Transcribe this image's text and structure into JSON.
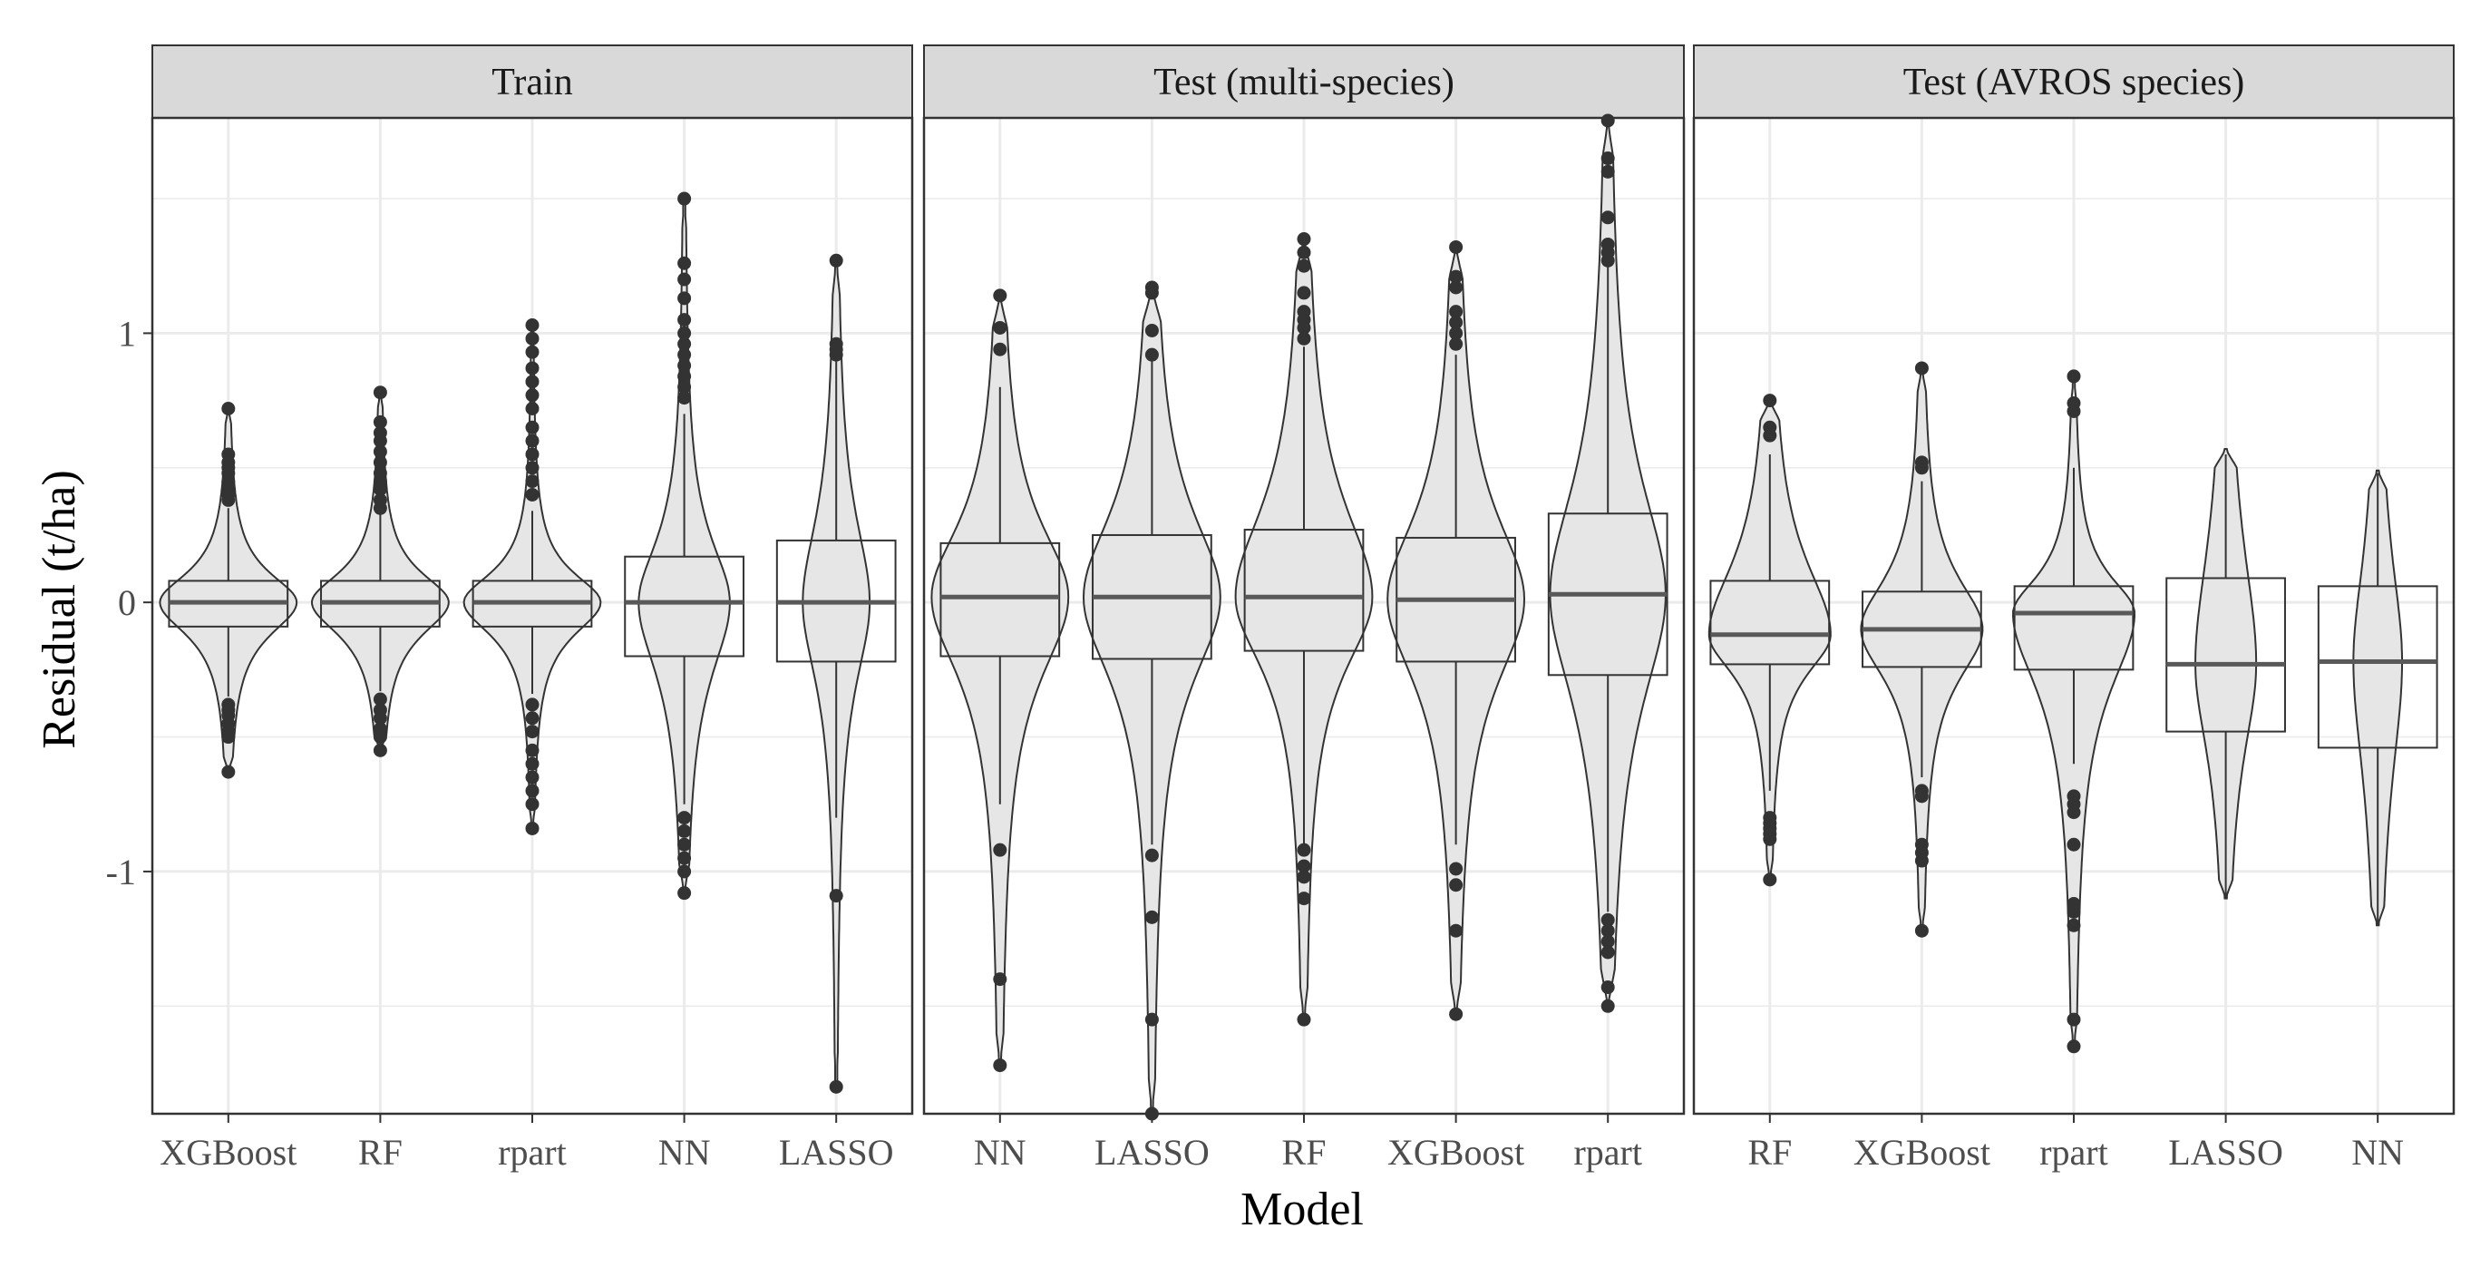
{
  "chart_data": {
    "type": "violin+boxplot",
    "xlabel": "Model",
    "ylabel": "Residual (t/ha)",
    "ylim": [
      -1.9,
      1.8
    ],
    "yticks": [
      -1,
      0,
      1
    ],
    "ytick_labels": [
      "-1",
      "0",
      "1"
    ],
    "grid": true,
    "colors": {
      "violin_fill": "#e6e6e6",
      "outline": "#333333",
      "median": "#595959",
      "grid": "#ebebeb",
      "strip_fill": "#d9d9d9",
      "points": "#333333"
    },
    "panels": [
      {
        "title": "Train",
        "models": [
          {
            "name": "XGBoost",
            "q1": -0.09,
            "median": 0.0,
            "q3": 0.08,
            "wmin": -0.35,
            "wmax": 0.35,
            "vmin": -0.63,
            "vmax": 0.72,
            "max_width": 0.45,
            "outliers": [
              0.72,
              0.55,
              0.52,
              0.5,
              0.48,
              0.45,
              0.42,
              0.4,
              0.38,
              -0.38,
              -0.4,
              -0.42,
              -0.45,
              -0.48,
              -0.5,
              -0.63
            ]
          },
          {
            "name": "RF",
            "q1": -0.09,
            "median": 0.0,
            "q3": 0.08,
            "wmin": -0.33,
            "wmax": 0.33,
            "vmin": -0.55,
            "vmax": 0.78,
            "max_width": 0.45,
            "outliers": [
              0.78,
              0.67,
              0.63,
              0.6,
              0.56,
              0.52,
              0.48,
              0.45,
              0.42,
              0.38,
              0.35,
              -0.36,
              -0.4,
              -0.43,
              -0.47,
              -0.5,
              -0.55
            ]
          },
          {
            "name": "rpart",
            "q1": -0.09,
            "median": 0.0,
            "q3": 0.08,
            "wmin": -0.34,
            "wmax": 0.34,
            "vmin": -0.84,
            "vmax": 1.03,
            "max_width": 0.45,
            "outliers": [
              1.03,
              0.98,
              0.93,
              0.87,
              0.82,
              0.77,
              0.72,
              0.65,
              0.6,
              0.55,
              0.5,
              0.45,
              0.4,
              -0.38,
              -0.43,
              -0.48,
              -0.55,
              -0.6,
              -0.65,
              -0.7,
              -0.75,
              -0.84
            ]
          },
          {
            "name": "NN",
            "q1": -0.2,
            "median": 0.0,
            "q3": 0.17,
            "wmin": -0.75,
            "wmax": 0.7,
            "vmin": -1.08,
            "vmax": 1.5,
            "max_width": 0.3,
            "outliers": [
              1.5,
              1.26,
              1.2,
              1.13,
              1.05,
              1.0,
              0.96,
              0.92,
              0.88,
              0.84,
              0.8,
              0.76,
              -0.8,
              -0.85,
              -0.9,
              -0.95,
              -1.0,
              -1.08
            ]
          },
          {
            "name": "LASSO",
            "q1": -0.22,
            "median": 0.0,
            "q3": 0.23,
            "wmin": -0.8,
            "wmax": 0.9,
            "vmin": -1.8,
            "vmax": 1.27,
            "max_width": 0.22,
            "outliers": [
              1.27,
              0.96,
              0.94,
              0.92,
              -1.09,
              -1.8
            ]
          }
        ]
      },
      {
        "title": "Test (multi-species)",
        "models": [
          {
            "name": "NN",
            "q1": -0.2,
            "median": 0.02,
            "q3": 0.22,
            "wmin": -0.75,
            "wmax": 0.8,
            "vmin": -1.72,
            "vmax": 1.14,
            "max_width": 0.45,
            "outliers": [
              1.14,
              1.02,
              0.94,
              -0.92,
              -1.4,
              -1.72
            ]
          },
          {
            "name": "LASSO",
            "q1": -0.21,
            "median": 0.02,
            "q3": 0.25,
            "wmin": -0.9,
            "wmax": 0.9,
            "vmin": -1.9,
            "vmax": 1.17,
            "max_width": 0.45,
            "outliers": [
              1.17,
              1.15,
              1.01,
              0.92,
              -0.94,
              -1.17,
              -1.55,
              -1.9
            ]
          },
          {
            "name": "RF",
            "q1": -0.18,
            "median": 0.02,
            "q3": 0.27,
            "wmin": -0.9,
            "wmax": 0.95,
            "vmin": -1.55,
            "vmax": 1.35,
            "max_width": 0.45,
            "outliers": [
              1.35,
              1.3,
              1.25,
              1.15,
              1.08,
              1.05,
              1.02,
              0.98,
              -0.92,
              -0.98,
              -1.02,
              -1.1,
              -1.55
            ]
          },
          {
            "name": "XGBoost",
            "q1": -0.22,
            "median": 0.01,
            "q3": 0.24,
            "wmin": -0.9,
            "wmax": 0.92,
            "vmin": -1.53,
            "vmax": 1.32,
            "max_width": 0.45,
            "outliers": [
              1.32,
              1.21,
              1.17,
              1.08,
              1.04,
              1.0,
              0.96,
              -0.99,
              -1.05,
              -1.22,
              -1.53
            ]
          },
          {
            "name": "rpart",
            "q1": -0.27,
            "median": 0.03,
            "q3": 0.33,
            "wmin": -1.15,
            "wmax": 1.25,
            "vmin": -1.5,
            "vmax": 1.79,
            "max_width": 0.38,
            "outliers": [
              1.79,
              1.65,
              1.6,
              1.43,
              1.33,
              1.3,
              1.27,
              -1.18,
              -1.22,
              -1.26,
              -1.3,
              -1.43,
              -1.5
            ]
          }
        ]
      },
      {
        "title": "Test (AVROS species)",
        "models": [
          {
            "name": "RF",
            "q1": -0.23,
            "median": -0.12,
            "q3": 0.08,
            "wmin": -0.7,
            "wmax": 0.55,
            "vmin": -1.03,
            "vmax": 0.75,
            "max_width": 0.4,
            "outliers": [
              0.75,
              0.65,
              0.62,
              -0.8,
              -0.82,
              -0.84,
              -0.86,
              -0.88,
              -1.03
            ]
          },
          {
            "name": "XGBoost",
            "q1": -0.24,
            "median": -0.1,
            "q3": 0.04,
            "wmin": -0.65,
            "wmax": 0.45,
            "vmin": -1.22,
            "vmax": 0.87,
            "max_width": 0.4,
            "outliers": [
              0.87,
              0.52,
              0.5,
              -0.7,
              -0.72,
              -0.9,
              -0.93,
              -0.96,
              -1.22
            ]
          },
          {
            "name": "rpart",
            "q1": -0.25,
            "median": -0.04,
            "q3": 0.06,
            "wmin": -0.6,
            "wmax": 0.5,
            "vmin": -1.65,
            "vmax": 0.84,
            "max_width": 0.4,
            "outliers": [
              0.84,
              0.74,
              0.71,
              -0.72,
              -0.75,
              -0.78,
              -0.9,
              -1.12,
              -1.15,
              -1.2,
              -1.55,
              -1.65
            ]
          },
          {
            "name": "LASSO",
            "q1": -0.48,
            "median": -0.23,
            "q3": 0.09,
            "wmin": -1.1,
            "wmax": 0.55,
            "vmin": -1.1,
            "vmax": 0.57,
            "max_width": 0.2,
            "outliers": []
          },
          {
            "name": "NN",
            "q1": -0.54,
            "median": -0.22,
            "q3": 0.06,
            "wmin": -1.2,
            "wmax": 0.48,
            "vmin": -1.2,
            "vmax": 0.49,
            "max_width": 0.16,
            "outliers": []
          }
        ]
      }
    ]
  }
}
